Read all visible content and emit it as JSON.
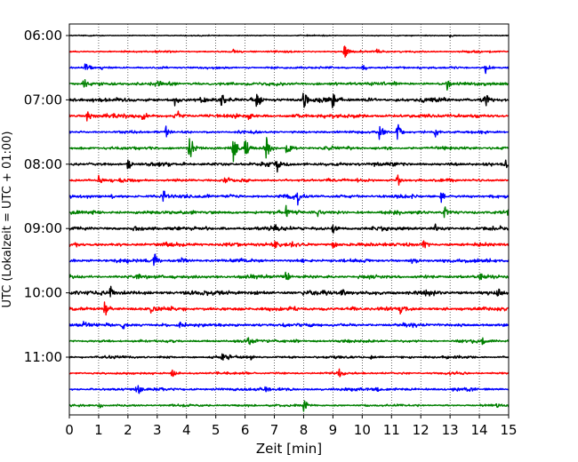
{
  "chart_data": {
    "type": "line",
    "title": "",
    "xlabel": "Zeit  [min]",
    "ylabel": "UTC (Lokalzeit = UTC + 01:00)",
    "xlim": [
      0,
      15
    ],
    "x_ticks": [
      "0",
      "1",
      "2",
      "3",
      "4",
      "5",
      "6",
      "7",
      "8",
      "9",
      "10",
      "11",
      "12",
      "13",
      "14",
      "15"
    ],
    "y_ticks": [
      "06:00",
      "07:00",
      "08:00",
      "09:00",
      "10:00",
      "11:00"
    ],
    "grid": "vertical dotted",
    "trace_interval_min": 15,
    "start_time": "06:00",
    "trace_colors": [
      "#000000",
      "#ff0000",
      "#0000ff",
      "#008000"
    ],
    "traces": [
      {
        "start": "06:00",
        "color": "#000000",
        "activity": 0.3,
        "events": [
          {
            "t": 13.0,
            "a": 0.2
          }
        ]
      },
      {
        "start": "06:15",
        "color": "#ff0000",
        "activity": 0.5,
        "events": [
          {
            "t": 5.6,
            "a": 0.4
          },
          {
            "t": 9.4,
            "a": 1.0
          },
          {
            "t": 10.5,
            "a": 0.3
          }
        ]
      },
      {
        "start": "06:30",
        "color": "#0000ff",
        "activity": 0.6,
        "events": [
          {
            "t": 0.55,
            "a": 1.0
          },
          {
            "t": 10.0,
            "a": 0.5
          },
          {
            "t": 14.2,
            "a": 0.9
          }
        ]
      },
      {
        "start": "06:45",
        "color": "#008000",
        "activity": 0.9,
        "events": [
          {
            "t": 0.5,
            "a": 0.8
          },
          {
            "t": 3.0,
            "a": 0.4
          },
          {
            "t": 12.9,
            "a": 0.9
          }
        ]
      },
      {
        "start": "07:00",
        "color": "#000000",
        "activity": 1.1,
        "events": [
          {
            "t": 3.6,
            "a": 0.8
          },
          {
            "t": 5.2,
            "a": 1.2
          },
          {
            "t": 6.4,
            "a": 1.6
          },
          {
            "t": 8.0,
            "a": 1.6
          },
          {
            "t": 9.0,
            "a": 1.3
          },
          {
            "t": 14.2,
            "a": 1.0
          }
        ]
      },
      {
        "start": "07:15",
        "color": "#ff0000",
        "activity": 1.0,
        "events": [
          {
            "t": 0.6,
            "a": 0.7
          },
          {
            "t": 2.5,
            "a": 0.8
          },
          {
            "t": 3.7,
            "a": 0.9
          },
          {
            "t": 6.1,
            "a": 0.6
          }
        ]
      },
      {
        "start": "07:30",
        "color": "#0000ff",
        "activity": 0.7,
        "events": [
          {
            "t": 3.3,
            "a": 0.8
          },
          {
            "t": 10.6,
            "a": 1.3
          },
          {
            "t": 11.2,
            "a": 1.2
          },
          {
            "t": 12.5,
            "a": 0.8
          }
        ]
      },
      {
        "start": "07:45",
        "color": "#008000",
        "activity": 0.8,
        "events": [
          {
            "t": 4.1,
            "a": 2.0
          },
          {
            "t": 5.6,
            "a": 1.8
          },
          {
            "t": 6.0,
            "a": 1.5
          },
          {
            "t": 6.7,
            "a": 1.9
          },
          {
            "t": 7.4,
            "a": 1.0
          }
        ]
      },
      {
        "start": "08:00",
        "color": "#000000",
        "activity": 1.0,
        "events": [
          {
            "t": 2.0,
            "a": 0.8
          },
          {
            "t": 7.1,
            "a": 1.0
          },
          {
            "t": 14.9,
            "a": 0.6
          }
        ]
      },
      {
        "start": "08:15",
        "color": "#ff0000",
        "activity": 0.8,
        "events": [
          {
            "t": 1.0,
            "a": 0.6
          },
          {
            "t": 5.3,
            "a": 0.4
          },
          {
            "t": 11.2,
            "a": 0.9
          }
        ]
      },
      {
        "start": "08:30",
        "color": "#0000ff",
        "activity": 0.9,
        "events": [
          {
            "t": 3.2,
            "a": 0.8
          },
          {
            "t": 4.7,
            "a": 0.6
          },
          {
            "t": 7.8,
            "a": 0.9
          },
          {
            "t": 12.7,
            "a": 0.8
          }
        ]
      },
      {
        "start": "08:45",
        "color": "#008000",
        "activity": 0.9,
        "events": [
          {
            "t": 7.4,
            "a": 1.0
          },
          {
            "t": 8.5,
            "a": 0.7
          },
          {
            "t": 12.8,
            "a": 0.9
          }
        ]
      },
      {
        "start": "09:00",
        "color": "#000000",
        "activity": 1.0,
        "events": [
          {
            "t": 2.2,
            "a": 0.5
          },
          {
            "t": 7.0,
            "a": 0.8
          },
          {
            "t": 9.0,
            "a": 0.9
          },
          {
            "t": 12.5,
            "a": 0.5
          }
        ]
      },
      {
        "start": "09:15",
        "color": "#ff0000",
        "activity": 1.0,
        "events": [
          {
            "t": 7.0,
            "a": 0.9
          },
          {
            "t": 9.0,
            "a": 0.6
          },
          {
            "t": 12.1,
            "a": 0.7
          }
        ]
      },
      {
        "start": "09:30",
        "color": "#0000ff",
        "activity": 0.9,
        "events": [
          {
            "t": 2.9,
            "a": 1.2
          },
          {
            "t": 3.8,
            "a": 0.5
          },
          {
            "t": 11.7,
            "a": 0.6
          },
          {
            "t": 14.3,
            "a": 0.4
          }
        ]
      },
      {
        "start": "09:45",
        "color": "#008000",
        "activity": 0.9,
        "events": [
          {
            "t": 2.3,
            "a": 0.6
          },
          {
            "t": 7.4,
            "a": 0.8
          },
          {
            "t": 14.0,
            "a": 0.5
          }
        ]
      },
      {
        "start": "10:00",
        "color": "#000000",
        "activity": 1.1,
        "events": [
          {
            "t": 1.4,
            "a": 1.0
          },
          {
            "t": 9.3,
            "a": 0.8
          },
          {
            "t": 14.6,
            "a": 1.0
          }
        ]
      },
      {
        "start": "10:15",
        "color": "#ff0000",
        "activity": 1.0,
        "events": [
          {
            "t": 1.2,
            "a": 0.9
          },
          {
            "t": 2.8,
            "a": 0.8
          },
          {
            "t": 11.3,
            "a": 0.7
          }
        ]
      },
      {
        "start": "10:30",
        "color": "#0000ff",
        "activity": 0.9,
        "events": [
          {
            "t": 0.5,
            "a": 0.7
          },
          {
            "t": 1.8,
            "a": 0.8
          },
          {
            "t": 3.8,
            "a": 0.6
          }
        ]
      },
      {
        "start": "10:45",
        "color": "#008000",
        "activity": 0.7,
        "events": [
          {
            "t": 6.1,
            "a": 0.8
          },
          {
            "t": 7.7,
            "a": 0.5
          },
          {
            "t": 14.1,
            "a": 0.6
          }
        ]
      },
      {
        "start": "11:00",
        "color": "#000000",
        "activity": 0.7,
        "events": [
          {
            "t": 5.2,
            "a": 0.8
          },
          {
            "t": 6.2,
            "a": 0.4
          },
          {
            "t": 10.3,
            "a": 0.4
          }
        ]
      },
      {
        "start": "11:15",
        "color": "#ff0000",
        "activity": 0.6,
        "events": [
          {
            "t": 3.5,
            "a": 0.7
          },
          {
            "t": 9.2,
            "a": 0.8
          }
        ]
      },
      {
        "start": "11:30",
        "color": "#0000ff",
        "activity": 0.8,
        "events": [
          {
            "t": 2.3,
            "a": 0.9
          },
          {
            "t": 6.7,
            "a": 0.4
          },
          {
            "t": 10.5,
            "a": 0.4
          }
        ]
      },
      {
        "start": "11:45",
        "color": "#008000",
        "activity": 0.6,
        "events": [
          {
            "t": 1.0,
            "a": 0.5
          },
          {
            "t": 8.0,
            "a": 0.7
          },
          {
            "t": 14.6,
            "a": 0.4
          }
        ]
      }
    ]
  }
}
